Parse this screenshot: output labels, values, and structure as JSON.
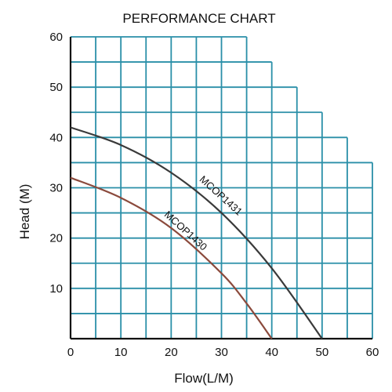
{
  "chart_data": {
    "type": "line",
    "title": "PERFORMANCE CHART",
    "xlabel": "Flow(L/M)",
    "ylabel": "Head (M)",
    "xlim": [
      0,
      60
    ],
    "ylim": [
      0,
      60
    ],
    "x_ticks": [
      "0",
      "10",
      "20",
      "30",
      "40",
      "50",
      "60"
    ],
    "y_ticks": [
      "10",
      "20",
      "30",
      "40",
      "50",
      "60"
    ],
    "grid": true,
    "grid_color": "#2a8fa8",
    "grid_envelope": [
      {
        "x": 35,
        "y": 60
      },
      {
        "x": 40,
        "y": 55
      },
      {
        "x": 45,
        "y": 50
      },
      {
        "x": 50,
        "y": 45
      },
      {
        "x": 55,
        "y": 40
      },
      {
        "x": 60,
        "y": 35
      }
    ],
    "series": [
      {
        "name": "MCOP1431",
        "color": "#3a3a3a",
        "points": [
          [
            0,
            42
          ],
          [
            10,
            38.5
          ],
          [
            20,
            33
          ],
          [
            30,
            25
          ],
          [
            40,
            14
          ],
          [
            50,
            0
          ]
        ]
      },
      {
        "name": "MCOP1430",
        "color": "#8b4a3c",
        "points": [
          [
            0,
            32
          ],
          [
            10,
            28
          ],
          [
            20,
            22
          ],
          [
            30,
            13
          ],
          [
            35,
            7
          ],
          [
            40,
            0
          ]
        ]
      }
    ]
  }
}
